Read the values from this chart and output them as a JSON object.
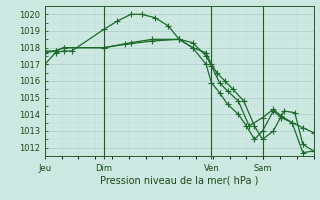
{
  "bg_color": "#cce8e0",
  "grid_color_major": "#aacccc",
  "grid_color_minor": "#bbdddd",
  "line_color": "#1a6b2a",
  "title": "Pression niveau de la mer( hPa )",
  "ylim": [
    1011.5,
    1020.5
  ],
  "yticks": [
    1012,
    1013,
    1014,
    1015,
    1016,
    1017,
    1018,
    1019,
    1020
  ],
  "xtick_labels": [
    "Jeu",
    "Dim",
    "Ven",
    "Sam"
  ],
  "vline_positions": [
    0.0,
    0.22,
    0.62,
    0.81
  ],
  "series1_x": [
    0.0,
    0.04,
    0.07,
    0.1,
    0.22,
    0.27,
    0.32,
    0.36,
    0.41,
    0.46,
    0.5,
    0.55,
    0.6,
    0.62,
    0.64,
    0.67,
    0.7,
    0.74,
    0.78,
    0.81,
    0.85,
    0.89,
    0.93,
    0.96,
    1.0
  ],
  "series1_y": [
    1017.0,
    1017.7,
    1017.8,
    1017.8,
    1019.1,
    1019.6,
    1020.0,
    1020.0,
    1019.8,
    1019.3,
    1018.5,
    1018.0,
    1017.7,
    1017.0,
    1016.5,
    1016.0,
    1015.5,
    1014.8,
    1013.3,
    1012.5,
    1013.0,
    1014.2,
    1014.1,
    1012.2,
    1011.8
  ],
  "series2_x": [
    0.0,
    0.04,
    0.07,
    0.22,
    0.3,
    0.4,
    0.5,
    0.55,
    0.6,
    0.62,
    0.65,
    0.68,
    0.72,
    0.76,
    0.81,
    0.85,
    0.88,
    0.92,
    0.96,
    1.0
  ],
  "series2_y": [
    1017.7,
    1017.8,
    1018.0,
    1018.0,
    1018.2,
    1018.4,
    1018.5,
    1018.3,
    1017.5,
    1016.9,
    1015.9,
    1015.4,
    1014.8,
    1013.3,
    1013.8,
    1014.3,
    1013.9,
    1013.5,
    1013.2,
    1012.9
  ],
  "series3_x": [
    0.0,
    0.04,
    0.07,
    0.22,
    0.32,
    0.4,
    0.5,
    0.55,
    0.6,
    0.62,
    0.65,
    0.68,
    0.72,
    0.75,
    0.78,
    0.81,
    0.85,
    0.88,
    0.92,
    0.96,
    1.0
  ],
  "series3_y": [
    1017.8,
    1017.8,
    1018.0,
    1018.0,
    1018.3,
    1018.5,
    1018.5,
    1018.0,
    1017.0,
    1015.9,
    1015.3,
    1014.6,
    1014.0,
    1013.3,
    1012.5,
    1013.0,
    1014.2,
    1013.8,
    1013.5,
    1011.7,
    1011.8
  ]
}
